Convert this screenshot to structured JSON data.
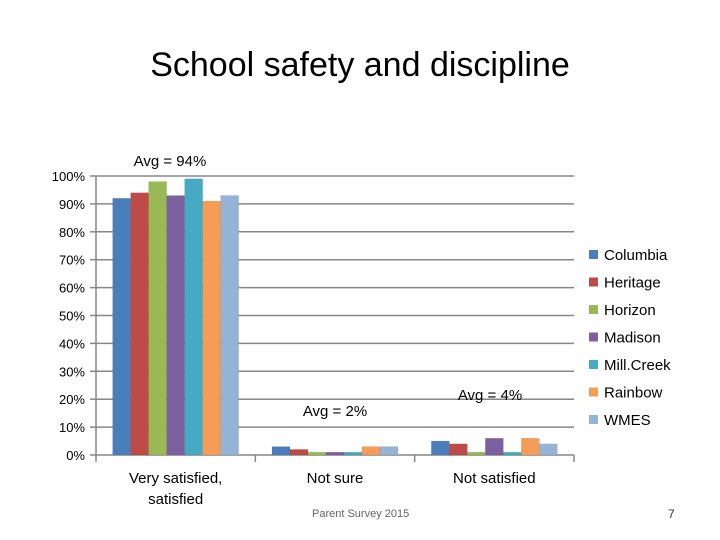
{
  "slide": {
    "title": "School safety and discipline",
    "footer": "Parent Survey 2015",
    "page_number": "7"
  },
  "chart_data": {
    "type": "bar",
    "title": "School safety and discipline",
    "xlabel": "",
    "ylabel": "",
    "ylim": [
      0,
      100
    ],
    "y_ticks": [
      "0%",
      "10%",
      "20%",
      "30%",
      "40%",
      "50%",
      "60%",
      "70%",
      "80%",
      "90%",
      "100%"
    ],
    "grid": true,
    "legend_position": "right",
    "categories": [
      "Very satisfied, satisfied",
      "Not sure",
      "Not satisfied"
    ],
    "category_lines": [
      [
        "Very satisfied,",
        "satisfied"
      ],
      [
        "Not sure"
      ],
      [
        "Not satisfied"
      ]
    ],
    "series": [
      {
        "name": "Columbia",
        "color": "#4A7EBB",
        "values": [
          92,
          3,
          5
        ]
      },
      {
        "name": "Heritage",
        "color": "#BE4B48",
        "values": [
          94,
          2,
          4
        ]
      },
      {
        "name": "Horizon",
        "color": "#98B954",
        "values": [
          98,
          1,
          1
        ]
      },
      {
        "name": "Madison",
        "color": "#7D60A0",
        "values": [
          93,
          1,
          6
        ]
      },
      {
        "name": "Mill.Creek",
        "color": "#46AAC5",
        "values": [
          99,
          1,
          1
        ]
      },
      {
        "name": "Rainbow",
        "color": "#F59D56",
        "values": [
          91,
          3,
          6
        ]
      },
      {
        "name": "WMES",
        "color": "#95B3D7",
        "values": [
          93,
          3,
          4
        ]
      }
    ],
    "annotations": [
      "Avg = 94%",
      "Avg = 2%",
      "Avg = 4%"
    ]
  }
}
